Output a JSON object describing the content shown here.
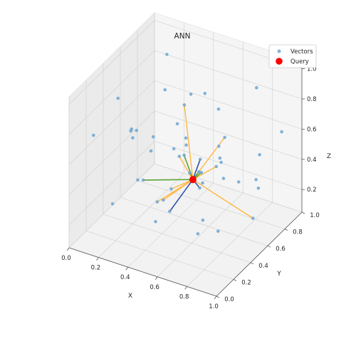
{
  "chart_data": {
    "type": "scatter",
    "subtype": "3d",
    "title": "ANN",
    "xlabel": "X",
    "ylabel": "Y",
    "zlabel": "Z",
    "xlim": [
      0,
      1
    ],
    "ylim": [
      0,
      1
    ],
    "zlim": [
      0.05,
      1.05
    ],
    "x_ticks": [
      "0.0",
      "0.2",
      "0.4",
      "0.6",
      "0.8",
      "1.0"
    ],
    "y_ticks": [
      "0.0",
      "0.2",
      "0.4",
      "0.6",
      "0.8",
      "1.0"
    ],
    "z_ticks": [
      "0.2",
      "0.4",
      "0.6",
      "0.8",
      "1.0"
    ],
    "grid": true,
    "legend_position": "top-right",
    "legend": [
      {
        "label": "Vectors",
        "marker": "point",
        "color": "#6ea6d0"
      },
      {
        "label": "Query",
        "marker": "point",
        "color": "#ff0000"
      }
    ],
    "colors": {
      "vectors": "#6ea6d0",
      "query": "#ff0000",
      "line_orange": "#ffb030",
      "line_green": "#4c9a20",
      "line_blue": "#1f3fa0"
    },
    "series": [
      {
        "name": "Vectors",
        "points": [
          [
            0.05,
            0.9,
            0.3
          ],
          [
            0.1,
            0.55,
            0.55
          ],
          [
            0.2,
            0.4,
            0.62
          ],
          [
            0.15,
            0.7,
            0.35
          ],
          [
            0.3,
            0.85,
            0.4
          ],
          [
            0.1,
            0.95,
            0.6
          ],
          [
            0.05,
            0.2,
            0.7
          ],
          [
            0.25,
            0.3,
            0.75
          ],
          [
            0.4,
            0.6,
            0.45
          ],
          [
            0.35,
            0.2,
            0.5
          ],
          [
            0.45,
            0.45,
            0.6
          ],
          [
            0.3,
            0.35,
            0.4
          ],
          [
            0.5,
            0.7,
            0.25
          ],
          [
            0.55,
            0.8,
            0.7
          ],
          [
            0.6,
            0.5,
            0.55
          ],
          [
            0.65,
            0.25,
            0.8
          ],
          [
            0.7,
            0.6,
            0.4
          ],
          [
            0.75,
            0.9,
            0.85
          ],
          [
            0.8,
            0.4,
            0.65
          ],
          [
            0.85,
            0.75,
            0.3
          ],
          [
            0.9,
            0.2,
            0.9
          ],
          [
            0.95,
            0.55,
            0.5
          ],
          [
            0.5,
            0.15,
            0.3
          ],
          [
            0.6,
            0.95,
            0.15
          ],
          [
            0.4,
            0.1,
            0.9
          ],
          [
            0.2,
            0.8,
            0.95
          ],
          [
            0.7,
            0.3,
            0.2
          ],
          [
            0.45,
            0.65,
            0.85
          ],
          [
            0.55,
            0.4,
            0.95
          ],
          [
            0.85,
            0.1,
            0.45
          ],
          [
            0.95,
            0.85,
            0.65
          ],
          [
            0.35,
            0.5,
            0.2
          ],
          [
            0.65,
            0.7,
            0.6
          ],
          [
            0.25,
            0.6,
            0.1
          ],
          [
            0.75,
            0.45,
            0.15
          ],
          [
            0.9,
            0.6,
            0.2
          ],
          [
            0.15,
            0.25,
            0.25
          ],
          [
            0.5,
            0.55,
            0.4
          ],
          [
            0.58,
            0.52,
            0.45
          ],
          [
            0.62,
            0.48,
            0.48
          ],
          [
            0.45,
            0.42,
            0.35
          ],
          [
            0.55,
            0.58,
            0.3
          ],
          [
            0.68,
            0.55,
            0.5
          ],
          [
            0.52,
            0.45,
            0.58
          ],
          [
            0.8,
            0.85,
            0.45
          ],
          [
            0.3,
            0.75,
            0.55
          ],
          [
            0.4,
            0.9,
            0.7
          ],
          [
            0.1,
            0.4,
            0.85
          ],
          [
            0.85,
            0.3,
            0.75
          ],
          [
            0.48,
            0.35,
            0.25
          ]
        ]
      },
      {
        "name": "Query",
        "points": [
          [
            0.55,
            0.5,
            0.4
          ]
        ]
      }
    ],
    "neighbor_links": [
      {
        "target": [
          0.25,
          0.6,
          0.1
        ],
        "color": "orange"
      },
      {
        "target": [
          0.35,
          0.5,
          0.2
        ],
        "color": "orange"
      },
      {
        "target": [
          0.9,
          0.6,
          0.2
        ],
        "color": "orange"
      },
      {
        "target": [
          0.45,
          0.42,
          0.35
        ],
        "color": "orange"
      },
      {
        "target": [
          0.65,
          0.7,
          0.6
        ],
        "color": "orange"
      },
      {
        "target": [
          0.55,
          0.4,
          0.95
        ],
        "color": "orange"
      },
      {
        "target": [
          0.68,
          0.55,
          0.5
        ],
        "color": "orange"
      },
      {
        "target": [
          0.4,
          0.6,
          0.45
        ],
        "color": "orange"
      },
      {
        "target": [
          0.5,
          0.55,
          0.4
        ],
        "color": "orange"
      },
      {
        "target": [
          0.3,
          0.35,
          0.4
        ],
        "color": "green"
      },
      {
        "target": [
          0.58,
          0.52,
          0.45
        ],
        "color": "green"
      },
      {
        "target": [
          0.62,
          0.48,
          0.48
        ],
        "color": "green"
      },
      {
        "target": [
          0.52,
          0.45,
          0.58
        ],
        "color": "green"
      },
      {
        "target": [
          0.48,
          0.35,
          0.25
        ],
        "color": "blue"
      },
      {
        "target": [
          0.55,
          0.58,
          0.3
        ],
        "color": "blue"
      },
      {
        "target": [
          0.6,
          0.5,
          0.55
        ],
        "color": "blue"
      }
    ]
  }
}
